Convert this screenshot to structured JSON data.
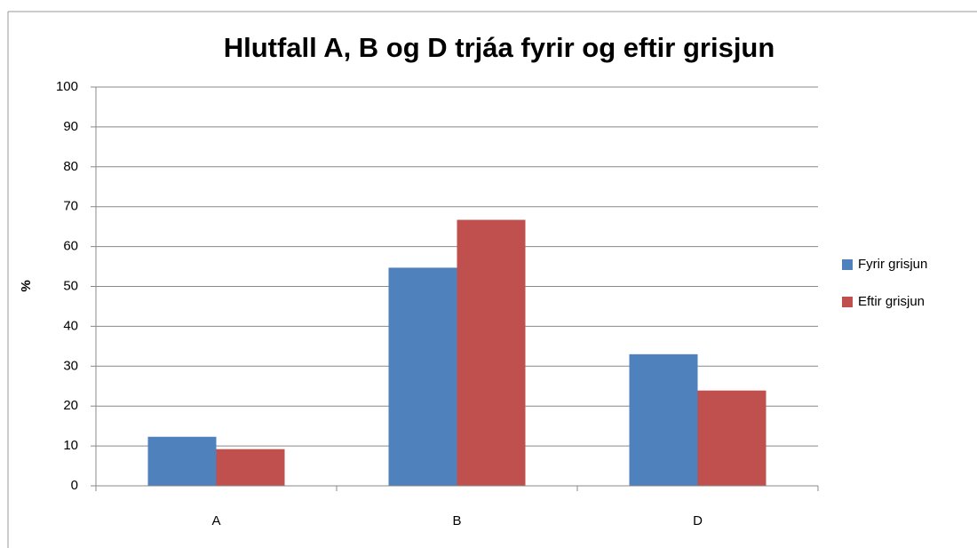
{
  "chart_data": {
    "type": "bar",
    "title": "Hlutfall A, B og D trjáa fyrir og eftir grisjun",
    "y_label": "%",
    "categories": [
      "A",
      "B",
      "D"
    ],
    "series": [
      {
        "name": "Fyrir grisjun",
        "color": "#4f81bd",
        "values": [
          12.3,
          54.7,
          33
        ]
      },
      {
        "name": "Eftir grisjun",
        "color": "#c0504d",
        "values": [
          9.2,
          66.7,
          23.9
        ]
      }
    ],
    "ylim": [
      0,
      100
    ],
    "yticks": [
      0,
      10,
      20,
      30,
      40,
      50,
      60,
      70,
      80,
      90,
      100
    ],
    "grid": true,
    "legend": "right"
  }
}
